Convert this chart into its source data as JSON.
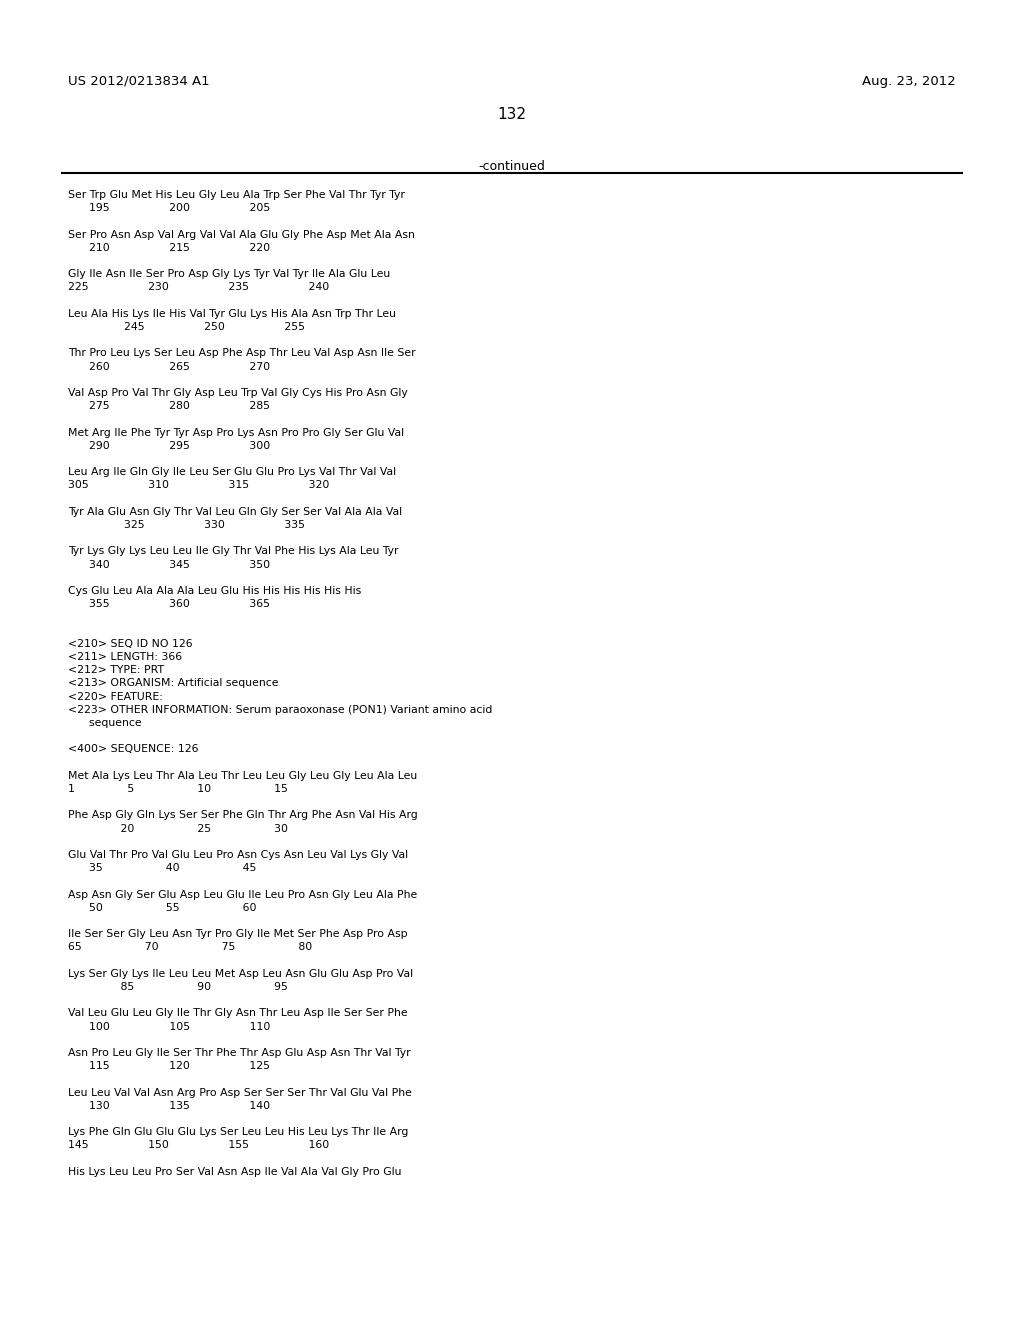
{
  "header_left": "US 2012/0213834 A1",
  "header_right": "Aug. 23, 2012",
  "page_number": "132",
  "continued_text": "-continued",
  "background_color": "#ffffff",
  "text_color": "#000000",
  "lines": [
    "Ser Trp Glu Met His Leu Gly Leu Ala Trp Ser Phe Val Thr Tyr Tyr",
    "      195                 200                 205",
    "",
    "Ser Pro Asn Asp Val Arg Val Val Ala Glu Gly Phe Asp Met Ala Asn",
    "      210                 215                 220",
    "",
    "Gly Ile Asn Ile Ser Pro Asp Gly Lys Tyr Val Tyr Ile Ala Glu Leu",
    "225                 230                 235                 240",
    "",
    "Leu Ala His Lys Ile His Val Tyr Glu Lys His Ala Asn Trp Thr Leu",
    "                245                 250                 255",
    "",
    "Thr Pro Leu Lys Ser Leu Asp Phe Asp Thr Leu Val Asp Asn Ile Ser",
    "      260                 265                 270",
    "",
    "Val Asp Pro Val Thr Gly Asp Leu Trp Val Gly Cys His Pro Asn Gly",
    "      275                 280                 285",
    "",
    "Met Arg Ile Phe Tyr Tyr Asp Pro Lys Asn Pro Pro Gly Ser Glu Val",
    "      290                 295                 300",
    "",
    "Leu Arg Ile Gln Gly Ile Leu Ser Glu Glu Pro Lys Val Thr Val Val",
    "305                 310                 315                 320",
    "",
    "Tyr Ala Glu Asn Gly Thr Val Leu Gln Gly Ser Ser Val Ala Ala Val",
    "                325                 330                 335",
    "",
    "Tyr Lys Gly Lys Leu Leu Ile Gly Thr Val Phe His Lys Ala Leu Tyr",
    "      340                 345                 350",
    "",
    "Cys Glu Leu Ala Ala Ala Leu Glu His His His His His His",
    "      355                 360                 365",
    "",
    "",
    "<210> SEQ ID NO 126",
    "<211> LENGTH: 366",
    "<212> TYPE: PRT",
    "<213> ORGANISM: Artificial sequence",
    "<220> FEATURE:",
    "<223> OTHER INFORMATION: Serum paraoxonase (PON1) Variant amino acid",
    "      sequence",
    "",
    "<400> SEQUENCE: 126",
    "",
    "Met Ala Lys Leu Thr Ala Leu Thr Leu Leu Gly Leu Gly Leu Ala Leu",
    "1               5                  10                  15",
    "",
    "Phe Asp Gly Gln Lys Ser Ser Phe Gln Thr Arg Phe Asn Val His Arg",
    "               20                  25                  30",
    "",
    "Glu Val Thr Pro Val Glu Leu Pro Asn Cys Asn Leu Val Lys Gly Val",
    "      35                  40                  45",
    "",
    "Asp Asn Gly Ser Glu Asp Leu Glu Ile Leu Pro Asn Gly Leu Ala Phe",
    "      50                  55                  60",
    "",
    "Ile Ser Ser Gly Leu Asn Tyr Pro Gly Ile Met Ser Phe Asp Pro Asp",
    "65                  70                  75                  80",
    "",
    "Lys Ser Gly Lys Ile Leu Leu Met Asp Leu Asn Glu Glu Asp Pro Val",
    "               85                  90                  95",
    "",
    "Val Leu Glu Leu Gly Ile Thr Gly Asn Thr Leu Asp Ile Ser Ser Phe",
    "      100                 105                 110",
    "",
    "Asn Pro Leu Gly Ile Ser Thr Phe Thr Asp Glu Asp Asn Thr Val Tyr",
    "      115                 120                 125",
    "",
    "Leu Leu Val Val Asn Arg Pro Asp Ser Ser Ser Thr Val Glu Val Phe",
    "      130                 135                 140",
    "",
    "Lys Phe Gln Glu Glu Glu Lys Ser Leu Leu His Leu Lys Thr Ile Arg",
    "145                 150                 155                 160",
    "",
    "His Lys Leu Leu Pro Ser Val Asn Asp Ile Val Ala Val Gly Pro Glu"
  ]
}
